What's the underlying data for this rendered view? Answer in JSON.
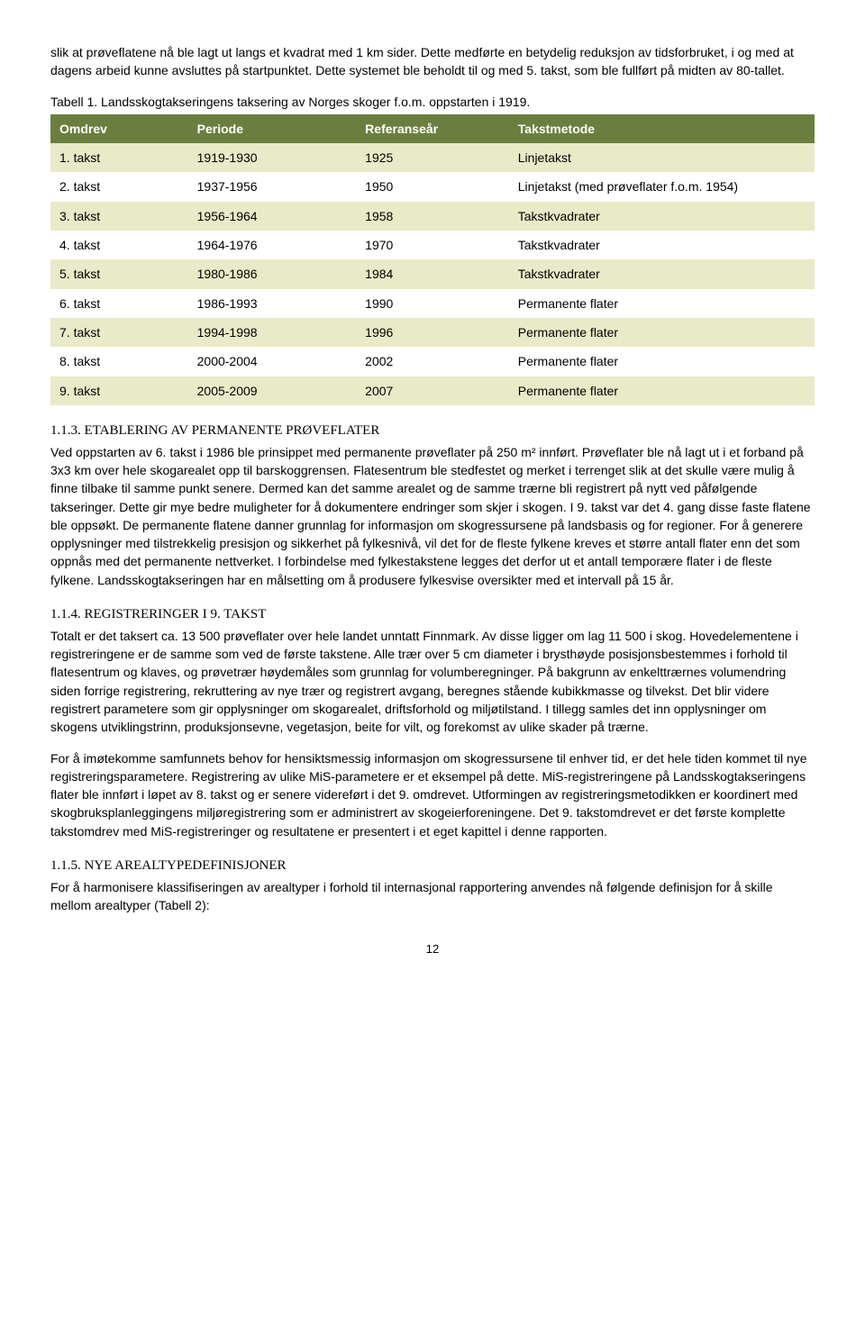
{
  "intro_paragraph": "slik at prøveflatene nå ble lagt ut langs et kvadrat med 1 km sider. Dette medførte en betydelig reduksjon av tidsforbruket, i og med at dagens arbeid kunne avsluttes på startpunktet. Dette systemet ble beholdt til og med 5. takst, som ble fullført på midten av 80-tallet.",
  "table_caption": "Tabell 1. Landsskogtakseringens taksering av Norges skoger f.o.m. oppstarten i 1919.",
  "table": {
    "header_bg": "#6a7f3f",
    "header_color": "#ffffff",
    "row_odd_bg": "#e9eac7",
    "row_even_bg": "#ffffff",
    "columns": [
      "Omdrev",
      "Periode",
      "Referanseår",
      "Takstmetode"
    ],
    "col_widths": [
      "18%",
      "22%",
      "20%",
      "40%"
    ],
    "rows": [
      [
        "1. takst",
        "1919-1930",
        "1925",
        "Linjetakst"
      ],
      [
        "2. takst",
        "1937-1956",
        "1950",
        "Linjetakst (med prøveflater f.o.m. 1954)"
      ],
      [
        "3. takst",
        "1956-1964",
        "1958",
        "Takstkvadrater"
      ],
      [
        "4. takst",
        "1964-1976",
        "1970",
        "Takstkvadrater"
      ],
      [
        "5. takst",
        "1980-1986",
        "1984",
        "Takstkvadrater"
      ],
      [
        "6. takst",
        "1986-1993",
        "1990",
        "Permanente flater"
      ],
      [
        "7. takst",
        "1994-1998",
        "1996",
        "Permanente flater"
      ],
      [
        "8. takst",
        "2000-2004",
        "2002",
        "Permanente flater"
      ],
      [
        "9. takst",
        "2005-2009",
        "2007",
        "Permanente flater"
      ]
    ]
  },
  "sections": [
    {
      "heading": "1.1.3. ETABLERING AV PERMANENTE PRØVEFLATER",
      "body": "Ved oppstarten av 6. takst i 1986 ble prinsippet med permanente prøveflater på 250 m² innført. Prøveflater ble nå lagt ut i et forband på 3x3 km over hele skogarealet opp til barskoggrensen. Flatesentrum ble stedfestet og merket i terrenget slik at det skulle være mulig å finne tilbake til samme punkt senere. Dermed kan det samme arealet og de samme trærne bli registrert på nytt ved påfølgende takseringer. Dette gir mye bedre muligheter for å dokumentere endringer som skjer i skogen. I 9. takst var det 4. gang disse faste flatene ble oppsøkt. De permanente flatene danner grunnlag for informasjon om skogressursene på landsbasis og for regioner. For å generere opplysninger med tilstrekkelig presisjon og sikkerhet på fylkesnivå, vil det for de fleste fylkene kreves et større antall flater enn det som oppnås med det permanente nettverket. I forbindelse med fylkestakstene legges det derfor ut et antall temporære flater i de fleste fylkene. Landsskogtakseringen har en målsetting om å produsere fylkesvise oversikter med et intervall på 15 år."
    },
    {
      "heading": "1.1.4. REGISTRERINGER I 9. TAKST",
      "body": "Totalt er det taksert ca. 13 500 prøveflater over hele landet unntatt Finnmark. Av disse ligger om lag 11 500 i skog. Hovedelementene i registreringene er de samme som ved de første takstene. Alle trær over 5 cm diameter i brysthøyde posisjonsbestemmes i forhold til flatesentrum og klaves, og prøvetrær høydemåles som grunnlag for volumberegninger. På bakgrunn av enkelttrærnes volumendring siden forrige registrering, rekruttering av nye trær og registrert avgang, beregnes stående kubikkmasse og tilvekst. Det blir videre registrert parametere som gir opplysninger om skogarealet, driftsforhold og miljøtilstand. I tillegg samles det inn opplysninger om skogens utviklingstrinn, produksjonsevne, vegetasjon, beite for vilt, og forekomst av ulike skader på trærne."
    },
    {
      "heading": "",
      "body": "For å imøtekomme samfunnets behov for hensiktsmessig informasjon om skogressursene til enhver tid, er det hele tiden kommet til nye registreringsparametere. Registrering av ulike MiS-parametere er et eksempel på dette. MiS-registreringene på Landsskogtakseringens flater ble innført i løpet av 8. takst og er senere videreført i det 9. omdrevet.  Utformingen av registreringsmetodikken er koordinert med skogbruksplanleggingens miljøregistrering som er administrert av skogeierforeningene. Det 9. takstomdrevet er det første komplette takstomdrev med MiS-registreringer og resultatene er presentert i et eget kapittel i denne rapporten."
    },
    {
      "heading": "1.1.5. NYE AREALTYPEDEFINISJONER",
      "body": "For å harmonisere klassifiseringen av arealtyper i forhold til internasjonal rapportering anvendes nå følgende definisjon for å skille mellom arealtyper (Tabell 2):"
    }
  ],
  "page_number": "12"
}
